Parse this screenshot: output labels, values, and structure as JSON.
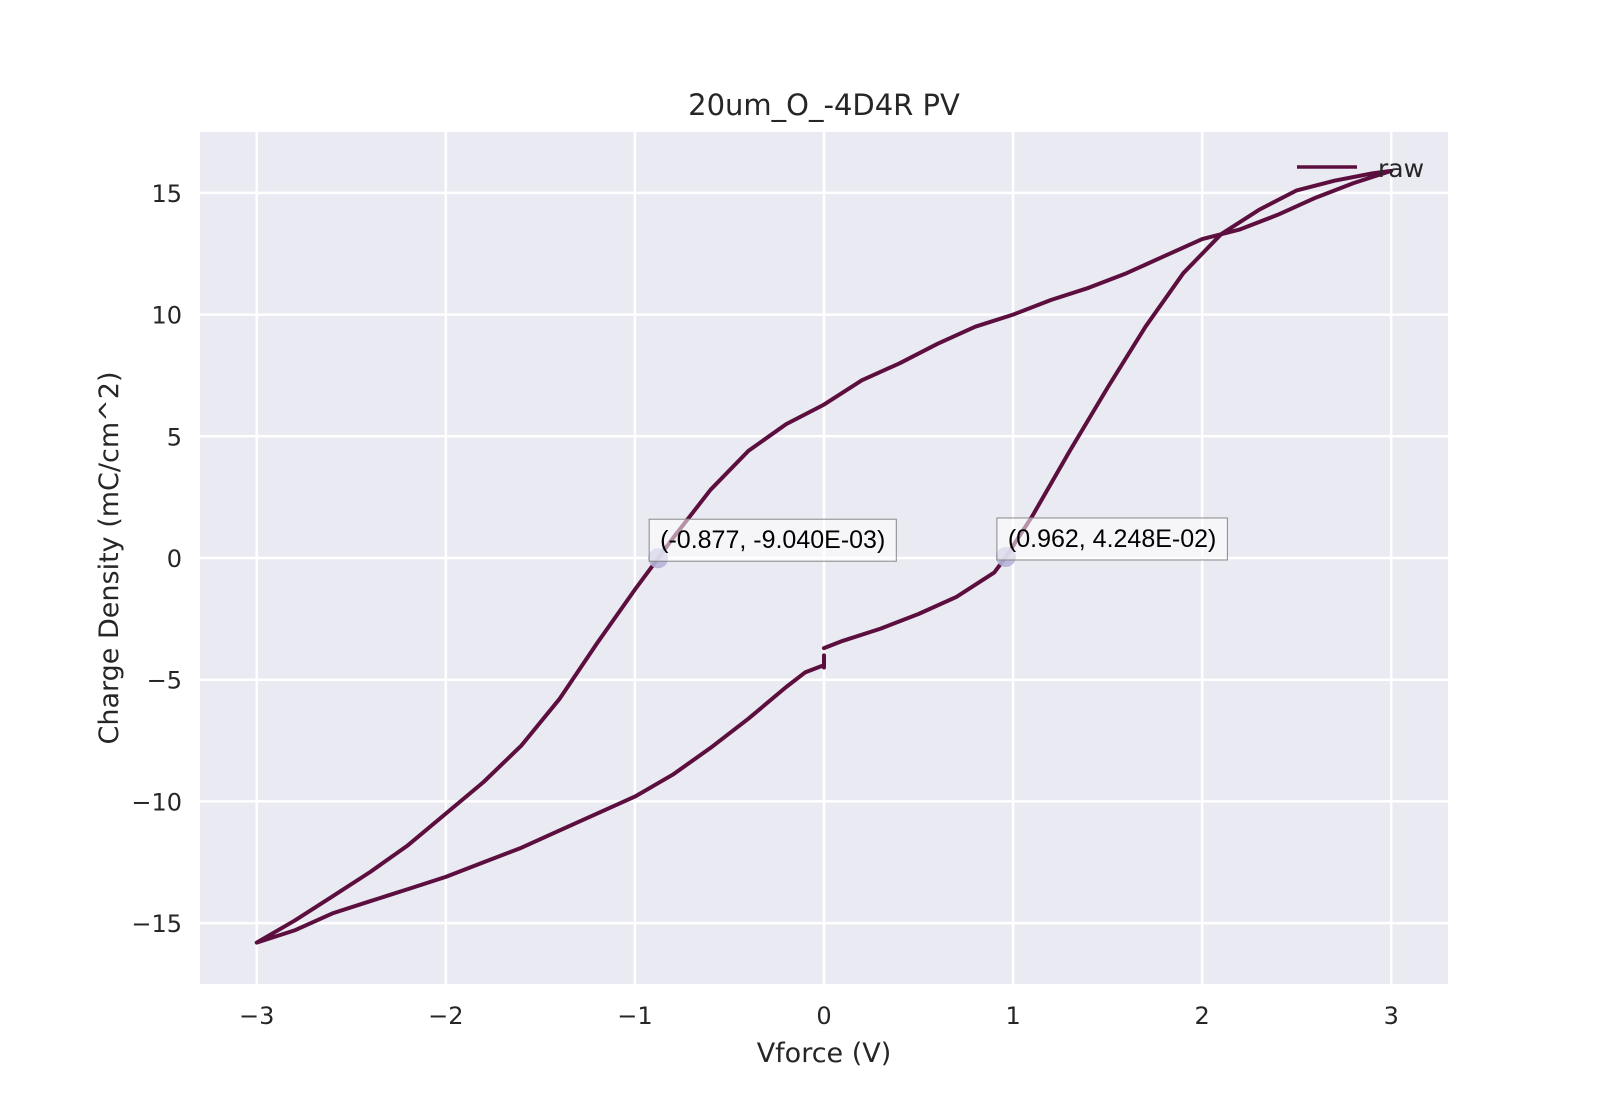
{
  "chart_data": {
    "type": "line",
    "title": "20um_O_-4D4R PV",
    "xlabel": "Vforce (V)",
    "ylabel": "Charge Density (mC/cm^2)",
    "xlim": [
      -3.3,
      3.3
    ],
    "ylim": [
      -17.5,
      17.5
    ],
    "xticks": [
      -3,
      -2,
      -1,
      0,
      1,
      2,
      3
    ],
    "yticks": [
      -15,
      -10,
      -5,
      0,
      5,
      10,
      15
    ],
    "xtick_labels": [
      "−3",
      "−2",
      "−1",
      "0",
      "1",
      "2",
      "3"
    ],
    "ytick_labels": [
      "−15",
      "−10",
      "−5",
      "0",
      "5",
      "10",
      "15"
    ],
    "grid": true,
    "background": "#eaeaf2",
    "legend_position": "top-right",
    "series": [
      {
        "name": "raw",
        "color": "#5c0f3e",
        "segments": [
          {
            "x": [
              0.0,
              0.1,
              0.3,
              0.5,
              0.7,
              0.9,
              0.962,
              1.1,
              1.3,
              1.5,
              1.7,
              1.9,
              2.1,
              2.3,
              2.5,
              2.7,
              2.9,
              3.0,
              2.8,
              2.6,
              2.4,
              2.2,
              2.0,
              1.8,
              1.6,
              1.4,
              1.2,
              1.0,
              0.8,
              0.6,
              0.4,
              0.2,
              0.0,
              -0.2,
              -0.4,
              -0.6,
              -0.8,
              -0.877,
              -1.0,
              -1.2,
              -1.4,
              -1.6,
              -1.8,
              -2.0,
              -2.2,
              -2.4,
              -2.6,
              -2.8,
              -3.0,
              -2.8,
              -2.6,
              -2.4,
              -2.2,
              -2.0,
              -1.8,
              -1.6,
              -1.4,
              -1.2,
              -1.0,
              -0.8,
              -0.6,
              -0.4,
              -0.2,
              -0.1,
              0.0
            ],
            "y": [
              -3.7,
              -3.4,
              -2.9,
              -2.3,
              -1.6,
              -0.6,
              0.04248,
              1.7,
              4.4,
              7.0,
              9.5,
              11.7,
              13.3,
              14.3,
              15.1,
              15.5,
              15.8,
              15.9,
              15.4,
              14.8,
              14.1,
              13.5,
              13.1,
              12.4,
              11.7,
              11.1,
              10.6,
              10.0,
              9.5,
              8.8,
              8.0,
              7.3,
              6.3,
              5.5,
              4.4,
              2.8,
              0.8,
              -0.00904,
              -1.3,
              -3.5,
              -5.8,
              -7.7,
              -9.2,
              -10.5,
              -11.8,
              -12.9,
              -13.9,
              -14.9,
              -15.8,
              -15.3,
              -14.6,
              -14.1,
              -13.6,
              -13.1,
              -12.5,
              -11.9,
              -11.2,
              -10.5,
              -9.8,
              -8.9,
              -7.8,
              -6.6,
              -5.3,
              -4.7,
              -4.4
            ]
          },
          {
            "x": [
              0.0,
              0.0
            ],
            "y": [
              -4.5,
              -4.0
            ]
          }
        ]
      }
    ],
    "markers": [
      {
        "x": -0.877,
        "y": -0.00904,
        "label": "(-0.877, -9.040E-03)",
        "color": "#b4b4d8"
      },
      {
        "x": 0.962,
        "y": 0.04248,
        "label": "(0.962, 4.248E-02)",
        "color": "#b4b4d8"
      }
    ]
  }
}
